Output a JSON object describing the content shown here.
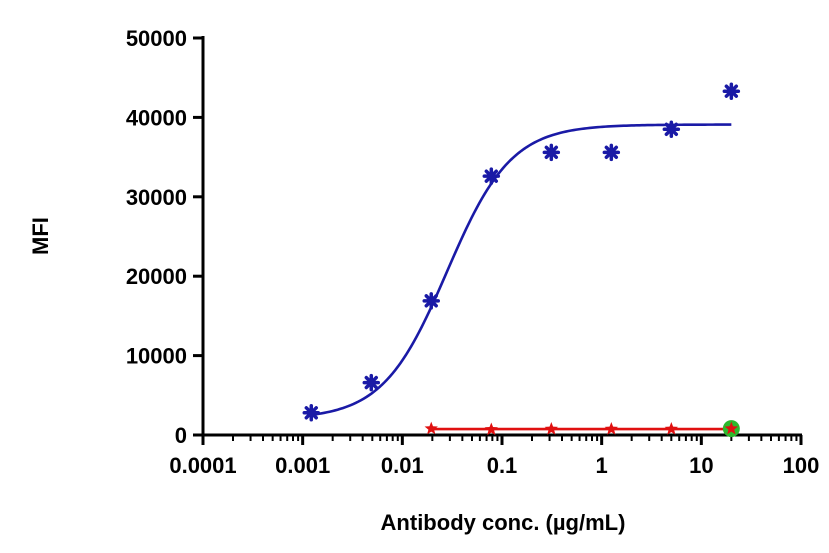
{
  "chart_data": {
    "type": "scatter",
    "xlabel": "Antibody conc. (µg/mL)",
    "ylabel": "MFI",
    "xscale": "log",
    "xlim": [
      0.0001,
      100
    ],
    "ylim": [
      0,
      50000
    ],
    "x_ticks": [
      "0.0001",
      "0.001",
      "0.01",
      "0.1",
      "1",
      "10",
      "100"
    ],
    "y_ticks": [
      "0",
      "10000",
      "20000",
      "30000",
      "40000",
      "50000"
    ],
    "grid": false,
    "series": [
      {
        "color": "#1a1aa6",
        "marker": "asterisk",
        "x": [
          0.00122,
          0.00488,
          0.0195,
          0.0781,
          0.3125,
          1.25,
          5,
          20
        ],
        "y": [
          2800,
          6600,
          16900,
          32600,
          35600,
          35600,
          38500,
          43300
        ],
        "fit": {
          "bottom": 2000,
          "top": 39100,
          "ec50": 0.028,
          "hill": 1.35
        }
      },
      {
        "color": "#e01010",
        "marker": "star",
        "x": [
          0.0195,
          0.0781,
          0.3125,
          1.25,
          5,
          20
        ],
        "y": [
          800,
          700,
          750,
          750,
          750,
          800
        ],
        "fit": {
          "constant": 750
        }
      }
    ],
    "highlight": {
      "x": 20,
      "y": 800,
      "color": "#2db82d"
    }
  }
}
